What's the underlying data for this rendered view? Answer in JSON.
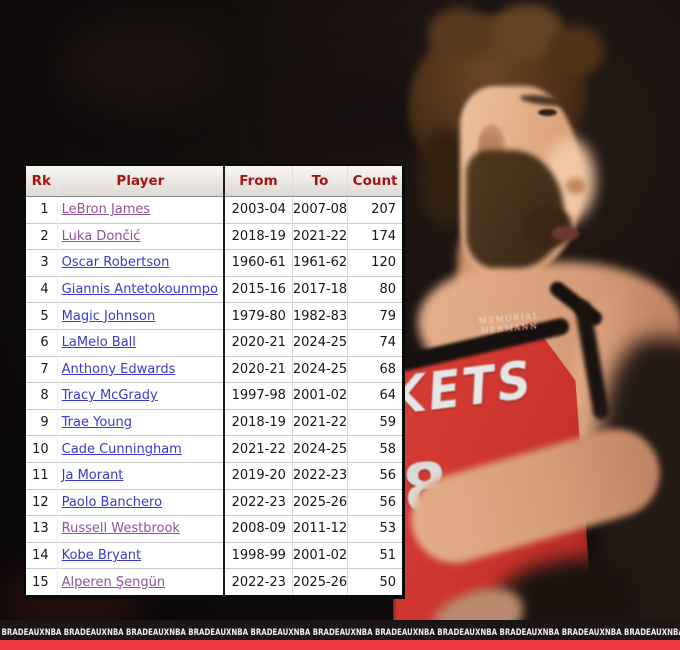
{
  "table": {
    "headers": [
      "Rk",
      "Player",
      "From",
      "To",
      "Count"
    ],
    "rows": [
      {
        "rk": "1",
        "player": "LeBron James",
        "from": "2003-04",
        "to": "2007-08",
        "count": "207",
        "visited": true
      },
      {
        "rk": "2",
        "player": "Luka Dončić",
        "from": "2018-19",
        "to": "2021-22",
        "count": "174",
        "visited": true
      },
      {
        "rk": "3",
        "player": "Oscar Robertson",
        "from": "1960-61",
        "to": "1961-62",
        "count": "120",
        "visited": false
      },
      {
        "rk": "4",
        "player": "Giannis Antetokounmpo",
        "from": "2015-16",
        "to": "2017-18",
        "count": "80",
        "visited": false
      },
      {
        "rk": "5",
        "player": "Magic Johnson",
        "from": "1979-80",
        "to": "1982-83",
        "count": "79",
        "visited": false
      },
      {
        "rk": "6",
        "player": "LaMelo Ball",
        "from": "2020-21",
        "to": "2024-25",
        "count": "74",
        "visited": false
      },
      {
        "rk": "7",
        "player": "Anthony Edwards",
        "from": "2020-21",
        "to": "2024-25",
        "count": "68",
        "visited": false
      },
      {
        "rk": "8",
        "player": "Tracy McGrady",
        "from": "1997-98",
        "to": "2001-02",
        "count": "64",
        "visited": false
      },
      {
        "rk": "9",
        "player": "Trae Young",
        "from": "2018-19",
        "to": "2021-22",
        "count": "59",
        "visited": false
      },
      {
        "rk": "10",
        "player": "Cade Cunningham",
        "from": "2021-22",
        "to": "2024-25",
        "count": "58",
        "visited": false
      },
      {
        "rk": "11",
        "player": "Ja Morant",
        "from": "2019-20",
        "to": "2022-23",
        "count": "56",
        "visited": false
      },
      {
        "rk": "12",
        "player": "Paolo Banchero",
        "from": "2022-23",
        "to": "2025-26",
        "count": "56",
        "visited": false
      },
      {
        "rk": "13",
        "player": "Russell Westbrook",
        "from": "2008-09",
        "to": "2011-12",
        "count": "53",
        "visited": true
      },
      {
        "rk": "14",
        "player": "Kobe Bryant",
        "from": "1998-99",
        "to": "2001-02",
        "count": "51",
        "visited": false
      },
      {
        "rk": "15",
        "player": "Alperen Şengün",
        "from": "2022-23",
        "to": "2025-26",
        "count": "50",
        "visited": true
      }
    ]
  },
  "photo": {
    "jersey_text": "KETS",
    "jersey_number": "8",
    "patch_line1": "MEMORIAL",
    "patch_line2": "HERMANN"
  },
  "watermark": {
    "text": "BRADEAUXNBA",
    "repeat": 15
  },
  "colors": {
    "header_text": "#a31616",
    "link": "#3a3ace",
    "link_visited": "#92519c",
    "stripe_red": "#ee3a45",
    "jersey_red": "#c9332c",
    "band_black": "#1b1515"
  }
}
